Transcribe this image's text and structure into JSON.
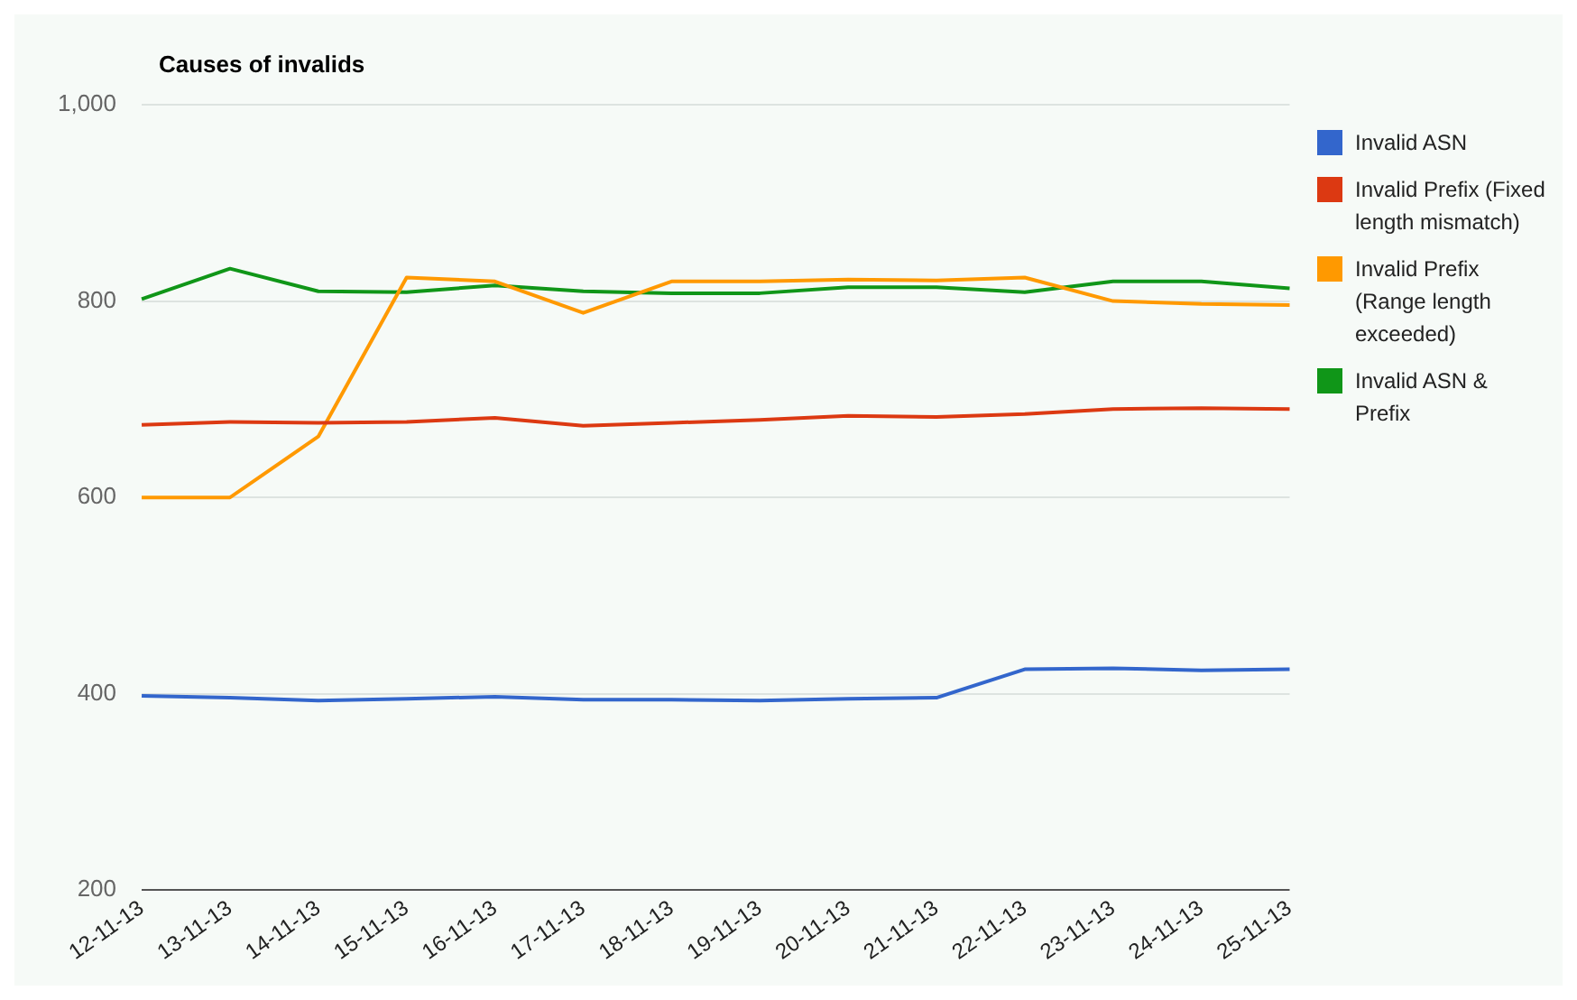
{
  "chart_data": {
    "type": "line",
    "title": "Causes of invalids",
    "categories": [
      "12-11-13",
      "13-11-13",
      "14-11-13",
      "15-11-13",
      "16-11-13",
      "17-11-13",
      "18-11-13",
      "19-11-13",
      "20-11-13",
      "21-11-13",
      "22-11-13",
      "23-11-13",
      "24-11-13",
      "25-11-13"
    ],
    "series": [
      {
        "name": "Invalid ASN",
        "color": "#3366cc",
        "values": [
          398,
          396,
          393,
          395,
          397,
          394,
          394,
          393,
          395,
          396,
          425,
          426,
          424,
          425
        ]
      },
      {
        "name": "Invalid Prefix (Fixed length mismatch)",
        "color": "#dc3912",
        "values": [
          674,
          677,
          676,
          677,
          681,
          673,
          676,
          679,
          683,
          682,
          685,
          690,
          691,
          690
        ]
      },
      {
        "name": "Invalid Prefix (Range length exceeded)",
        "color": "#ff9900",
        "values": [
          600,
          600,
          662,
          824,
          820,
          788,
          820,
          820,
          822,
          821,
          824,
          800,
          797,
          796
        ]
      },
      {
        "name": "Invalid ASN & Prefix",
        "color": "#109618",
        "values": [
          802,
          833,
          810,
          809,
          816,
          810,
          808,
          808,
          814,
          814,
          809,
          820,
          820,
          813
        ]
      }
    ],
    "ylim": [
      200,
      1000
    ],
    "yticks": [
      200,
      400,
      600,
      800,
      {
        "value": 1000,
        "label": "1,000"
      }
    ],
    "grid": "y",
    "legend": "right",
    "marker": "none",
    "line_style": "solid"
  }
}
